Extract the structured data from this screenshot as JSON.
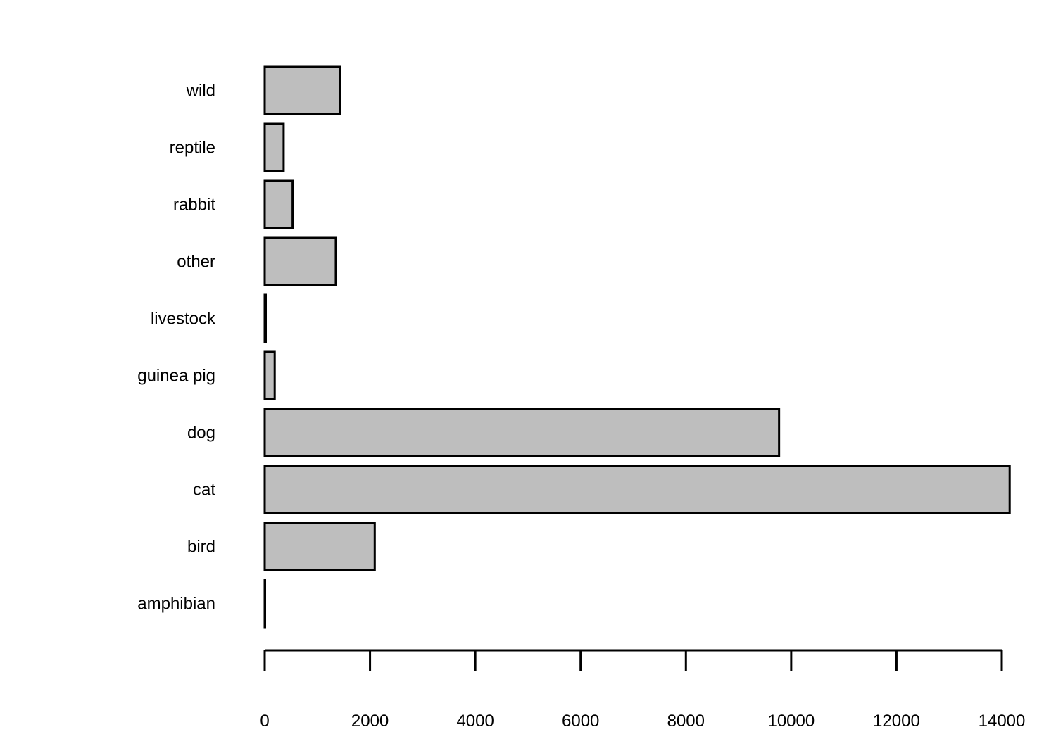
{
  "chart_data": {
    "type": "bar",
    "orientation": "horizontal",
    "title": "",
    "xlabel": "",
    "ylabel": "",
    "categories": [
      "amphibian",
      "bird",
      "cat",
      "dog",
      "guinea pig",
      "livestock",
      "other",
      "rabbit",
      "reptile",
      "wild"
    ],
    "values": [
      5,
      2090,
      14150,
      9770,
      190,
      20,
      1350,
      530,
      360,
      1430
    ],
    "xlim": [
      0,
      14000
    ],
    "x_ticks": [
      0,
      2000,
      4000,
      6000,
      8000,
      10000,
      12000,
      14000
    ],
    "x_tick_labels": [
      "0",
      "2000",
      "4000",
      "6000",
      "8000",
      "10000",
      "12000",
      "14000"
    ],
    "grid": false,
    "legend": "none",
    "colors": {
      "bar_fill": "#bebebe",
      "bar_stroke": "#000000"
    }
  }
}
